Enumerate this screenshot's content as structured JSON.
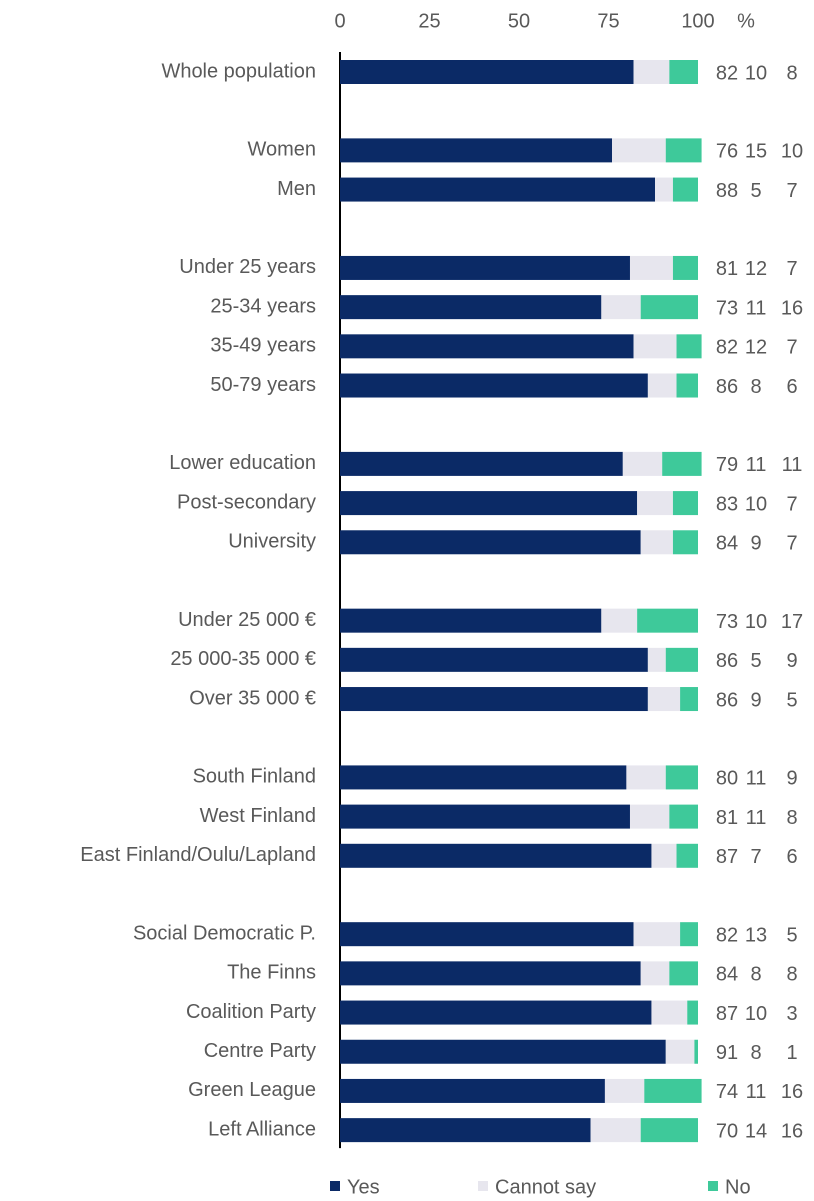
{
  "chart_data": {
    "type": "stacked_barh",
    "x_axis_unit": "%",
    "categories": [
      "Whole population",
      null,
      "Women",
      "Men",
      null,
      "Under 25 years",
      "25-34 years",
      "35-49 years",
      "50-79 years",
      null,
      "Lower education",
      "Post-secondary",
      "University",
      null,
      "Under 25 000 €",
      "25 000-35 000 €",
      "Over 35 000 €",
      null,
      "South Finland",
      "West Finland",
      "East Finland/Oulu/Lapland",
      null,
      "Social Democratic P.",
      "The Finns",
      "Coalition Party",
      "Centre Party",
      "Green League",
      "Left Alliance"
    ],
    "series": [
      {
        "name": "Yes",
        "color": "#0b2a66",
        "values": [
          82,
          null,
          76,
          88,
          null,
          81,
          73,
          82,
          86,
          null,
          79,
          83,
          84,
          null,
          73,
          86,
          86,
          null,
          80,
          81,
          87,
          null,
          82,
          84,
          87,
          91,
          74,
          70
        ]
      },
      {
        "name": "Cannot say",
        "color": "#e7e6ee",
        "values": [
          10,
          null,
          15,
          5,
          null,
          12,
          11,
          12,
          8,
          null,
          11,
          10,
          9,
          null,
          10,
          5,
          9,
          null,
          11,
          11,
          7,
          null,
          13,
          8,
          10,
          8,
          11,
          14
        ]
      },
      {
        "name": "No",
        "color": "#3ec99a",
        "values": [
          8,
          null,
          10,
          7,
          null,
          7,
          16,
          7,
          6,
          null,
          11,
          7,
          7,
          null,
          17,
          9,
          5,
          null,
          9,
          8,
          6,
          null,
          5,
          8,
          3,
          1,
          16,
          16
        ]
      }
    ],
    "xlim": [
      0,
      100
    ],
    "xticks": [
      0,
      25,
      50,
      75,
      100
    ],
    "grid": false,
    "legend": "bottom"
  }
}
